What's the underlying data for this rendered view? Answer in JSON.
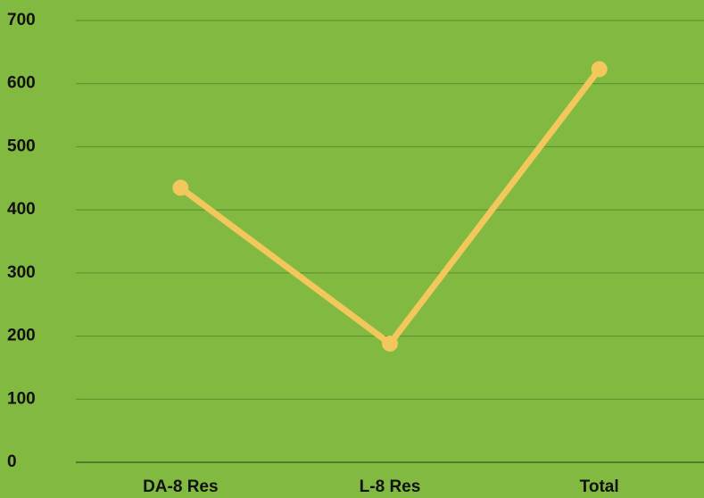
{
  "chart_data": {
    "type": "line",
    "categories": [
      "DA-8 Res",
      "L-8 Res",
      "Total"
    ],
    "series": [
      {
        "name": null,
        "color": "#f2c75c",
        "values": [
          435,
          188,
          623
        ]
      }
    ],
    "ylim": [
      0,
      700
    ],
    "yticks": [
      0,
      100,
      200,
      300,
      400,
      500,
      600,
      700
    ],
    "grid": true
  }
}
